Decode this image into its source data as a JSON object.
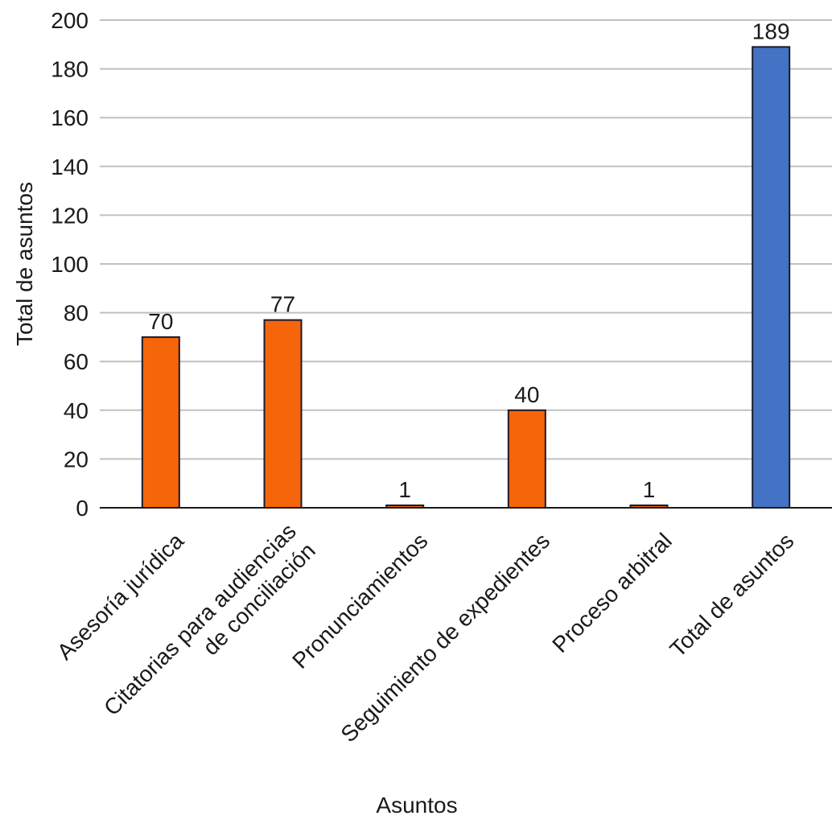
{
  "chart_data": {
    "type": "bar",
    "categories": [
      [
        "Asesoría jurídica"
      ],
      [
        "Citatorias para audiencias",
        "de conciliación"
      ],
      [
        "Pronunciamientos"
      ],
      [
        "Seguimiento de expedientes"
      ],
      [
        "Proceso arbitral"
      ],
      [
        "Total de asuntos"
      ]
    ],
    "values": [
      70,
      77,
      1,
      40,
      1,
      189
    ],
    "data_labels": [
      "70",
      "77",
      "1",
      "40",
      "1",
      "189"
    ],
    "bar_colors": [
      "#f5650a",
      "#f5650a",
      "#f5650a",
      "#f5650a",
      "#f5650a",
      "#4472c4"
    ],
    "bar_outline": "#1a1a2e",
    "xlabel": "Asuntos",
    "ylabel": "Total de asuntos",
    "ylim": [
      0,
      200
    ],
    "yticks": [
      0,
      20,
      40,
      60,
      80,
      100,
      120,
      140,
      160,
      180,
      200
    ],
    "grid": true,
    "grid_color": "#c0c0c0",
    "legend": "none"
  }
}
